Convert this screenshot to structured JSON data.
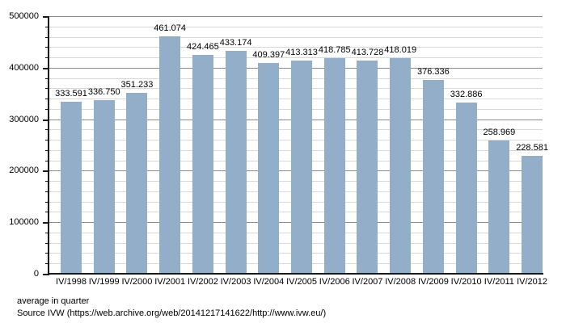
{
  "chart_data": {
    "type": "bar",
    "title": "",
    "xlabel": "",
    "ylabel": "",
    "categories": [
      "IV/1998",
      "IV/1999",
      "IV/2000",
      "IV/2001",
      "IV/2002",
      "IV/2003",
      "IV/2004",
      "IV/2005",
      "IV/2006",
      "IV/2007",
      "IV/2008",
      "IV/2009",
      "IV/2010",
      "IV/2011",
      "IV/2012"
    ],
    "values": [
      333591,
      336750,
      351233,
      461074,
      424465,
      433174,
      409397,
      413313,
      418785,
      413728,
      418019,
      376336,
      332886,
      258969,
      228581
    ],
    "value_labels": [
      "333.591",
      "336.750",
      "351.233",
      "461.074",
      "424.465",
      "433.174",
      "409.397",
      "413.313",
      "418.785",
      "413.728",
      "418.019",
      "376.336",
      "332.886",
      "258.969",
      "228.581"
    ],
    "ylim": [
      0,
      500000
    ],
    "y_major_ticks": [
      0,
      100000,
      200000,
      300000,
      400000,
      500000
    ],
    "y_tick_labels": [
      "0",
      "100000",
      "200000",
      "300000",
      "400000",
      "500000"
    ],
    "y_minor_step": 20000,
    "grid": true,
    "legend": "none",
    "colors": {
      "bar": "#92aec9",
      "major_grid": "#8c8c8c",
      "minor_grid": "#d9d9d9",
      "axis": "#1a1a1a",
      "text": "#000000",
      "background": "#ffffff"
    }
  },
  "footer": {
    "line1": "average in quarter",
    "line2": "Source IVW (https://web.archive.org/web/20141217141622/http://www.ivw.eu/)"
  }
}
